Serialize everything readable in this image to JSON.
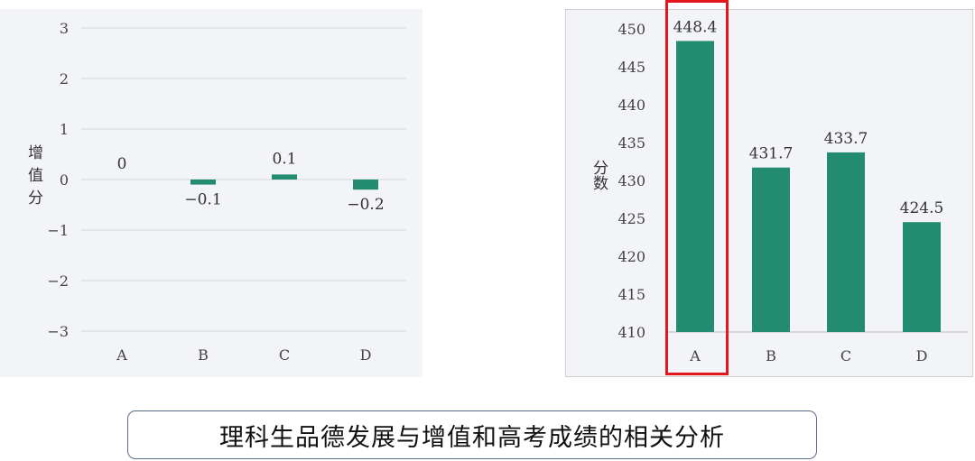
{
  "chart_data": [
    {
      "type": "bar",
      "title": "",
      "xlabel": "",
      "ylabel": "增值分",
      "categories": [
        "A",
        "B",
        "C",
        "D"
      ],
      "series": [
        {
          "values": [
            0,
            -0.1,
            0.1,
            -0.2
          ]
        }
      ],
      "data_labels": [
        "0",
        "−0.1",
        "0.1",
        "−0.2"
      ],
      "yticks": [
        "3",
        "2",
        "1",
        "0",
        "−1",
        "−2",
        "−3"
      ],
      "ytick_values": [
        3,
        2,
        1,
        0,
        -1,
        -2,
        -3
      ],
      "ylim": [
        -3,
        3
      ],
      "grid": true,
      "bar_color": "#238b6f"
    },
    {
      "type": "bar",
      "title": "",
      "xlabel": "",
      "ylabel": "分数",
      "categories": [
        "A",
        "B",
        "C",
        "D"
      ],
      "series": [
        {
          "values": [
            448.4,
            431.7,
            433.7,
            424.5
          ]
        }
      ],
      "data_labels": [
        "448.4",
        "431.7",
        "433.7",
        "424.5"
      ],
      "yticks": [
        "450",
        "445",
        "440",
        "435",
        "430",
        "425",
        "420",
        "415",
        "410"
      ],
      "ytick_values": [
        450,
        445,
        440,
        435,
        430,
        425,
        420,
        415,
        410
      ],
      "ylim": [
        410,
        450
      ],
      "grid": false,
      "bar_color": "#238b6f",
      "highlight_category": "A",
      "highlight_color": "#e3161b"
    }
  ],
  "caption": "理科生品德发展与增值和高考成绩的相关分析"
}
